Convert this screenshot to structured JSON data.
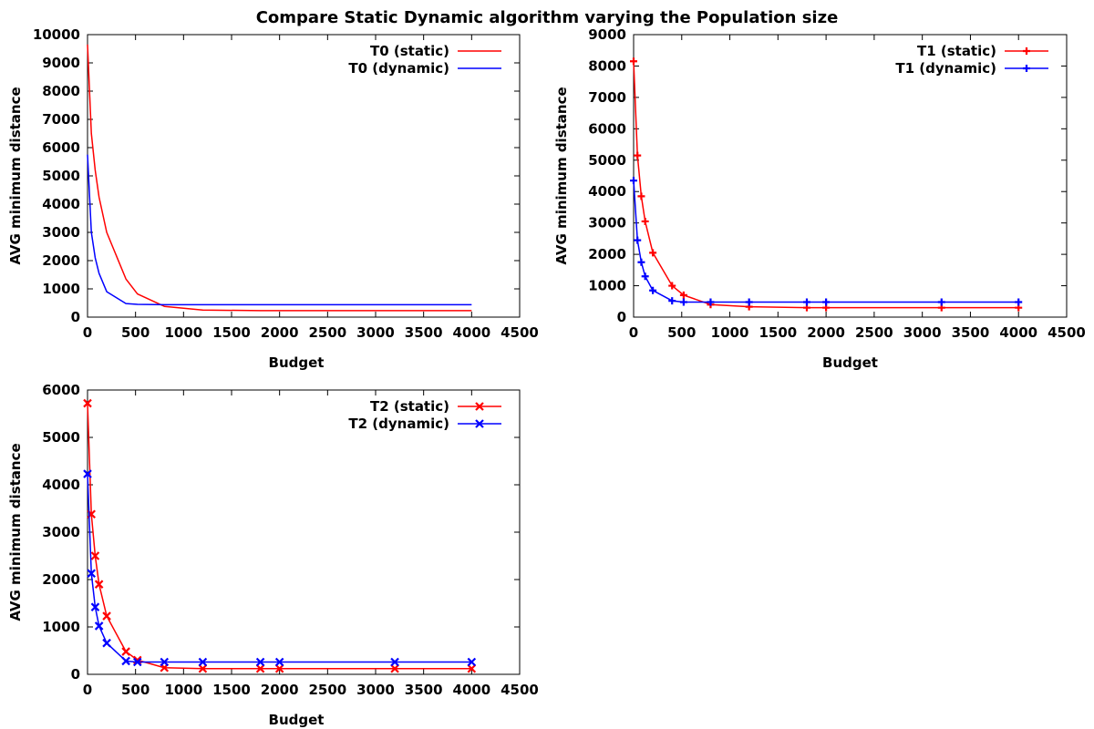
{
  "figure": {
    "title": "Compare Static  Dynamic algorithm varying the Population size"
  },
  "colors": {
    "static": "#ff0000",
    "dynamic": "#0000ff",
    "axis": "#000000"
  },
  "chart_data": [
    {
      "type": "line",
      "xlabel": "Budget",
      "ylabel": "AVG minimum distance",
      "xlim": [
        0,
        4500
      ],
      "ylim": [
        0,
        10000
      ],
      "xticks": [
        0,
        500,
        1000,
        1500,
        2000,
        2500,
        3000,
        3500,
        4000,
        4500
      ],
      "yticks": [
        0,
        1000,
        2000,
        3000,
        4000,
        5000,
        6000,
        7000,
        8000,
        9000,
        10000
      ],
      "grid": false,
      "legend": "top-right",
      "marker": "none",
      "series": [
        {
          "name": "T0 (static)",
          "color": "#ff0000",
          "x": [
            0,
            40,
            80,
            120,
            200,
            400,
            520,
            800,
            1200,
            1800,
            2000,
            3200,
            4000
          ],
          "y": [
            9650,
            6500,
            5200,
            4250,
            3000,
            1350,
            820,
            380,
            250,
            230,
            230,
            230,
            230
          ]
        },
        {
          "name": "T0 (dynamic)",
          "color": "#0000ff",
          "x": [
            0,
            40,
            80,
            120,
            200,
            400,
            520,
            800,
            1200,
            1800,
            2000,
            3200,
            4000
          ],
          "y": [
            5750,
            3000,
            2100,
            1550,
            900,
            480,
            450,
            440,
            440,
            440,
            440,
            440,
            440
          ]
        }
      ]
    },
    {
      "type": "line",
      "xlabel": "Budget",
      "ylabel": "AVG minimum distance",
      "xlim": [
        0,
        4500
      ],
      "ylim": [
        0,
        9000
      ],
      "xticks": [
        0,
        500,
        1000,
        1500,
        2000,
        2500,
        3000,
        3500,
        4000,
        4500
      ],
      "yticks": [
        0,
        1000,
        2000,
        3000,
        4000,
        5000,
        6000,
        7000,
        8000,
        9000
      ],
      "grid": false,
      "legend": "top-right",
      "marker": "plus",
      "series": [
        {
          "name": "T1 (static)",
          "color": "#ff0000",
          "x": [
            0,
            40,
            80,
            120,
            200,
            400,
            520,
            800,
            1200,
            1800,
            2000,
            3200,
            4000
          ],
          "y": [
            8150,
            5150,
            3850,
            3050,
            2050,
            1000,
            700,
            400,
            330,
            300,
            300,
            300,
            300
          ]
        },
        {
          "name": "T1 (dynamic)",
          "color": "#0000ff",
          "x": [
            0,
            40,
            80,
            120,
            200,
            400,
            520,
            800,
            1200,
            1800,
            2000,
            3200,
            4000
          ],
          "y": [
            4350,
            2450,
            1750,
            1300,
            850,
            520,
            480,
            480,
            480,
            480,
            480,
            480,
            480
          ]
        }
      ]
    },
    {
      "type": "line",
      "xlabel": "Budget",
      "ylabel": "AVG minimum distance",
      "xlim": [
        0,
        4500
      ],
      "ylim": [
        0,
        6000
      ],
      "xticks": [
        0,
        500,
        1000,
        1500,
        2000,
        2500,
        3000,
        3500,
        4000,
        4500
      ],
      "yticks": [
        0,
        1000,
        2000,
        3000,
        4000,
        5000,
        6000
      ],
      "grid": false,
      "legend": "top-right",
      "marker": "cross",
      "series": [
        {
          "name": "T2 (static)",
          "color": "#ff0000",
          "x": [
            0,
            40,
            80,
            120,
            200,
            400,
            520,
            800,
            1200,
            1800,
            2000,
            3200,
            4000
          ],
          "y": [
            5720,
            3380,
            2500,
            1900,
            1230,
            480,
            300,
            140,
            120,
            120,
            120,
            120,
            120
          ]
        },
        {
          "name": "T2 (dynamic)",
          "color": "#0000ff",
          "x": [
            0,
            40,
            80,
            120,
            200,
            400,
            520,
            800,
            1200,
            1800,
            2000,
            3200,
            4000
          ],
          "y": [
            4230,
            2130,
            1420,
            1020,
            660,
            280,
            260,
            260,
            260,
            260,
            260,
            260,
            260
          ]
        }
      ]
    }
  ]
}
